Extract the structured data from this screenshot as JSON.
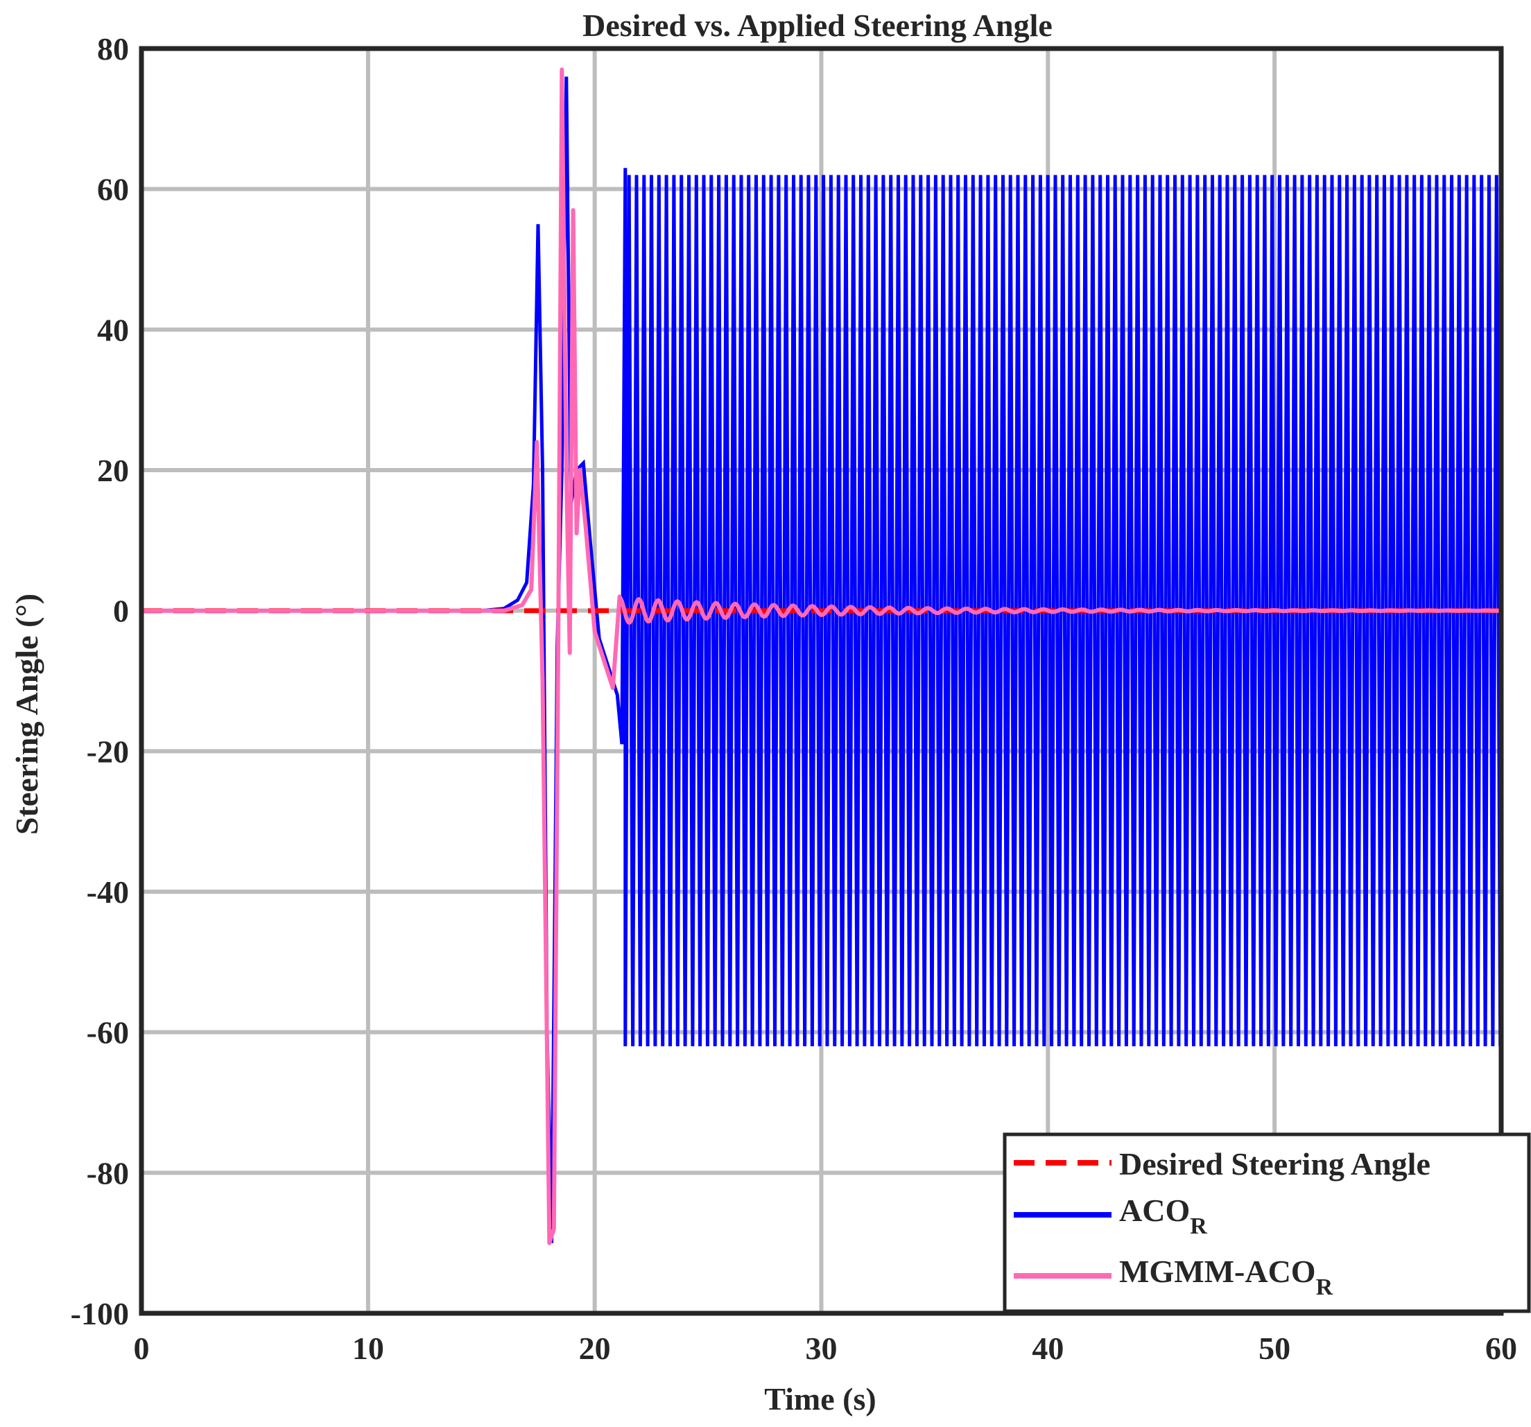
{
  "chart_data": {
    "type": "line",
    "title": "Desired vs. Applied Steering Angle",
    "xlabel": "Time (s)",
    "ylabel": "Steering Angle (°)",
    "xlim": [
      0,
      60
    ],
    "ylim": [
      -100,
      80
    ],
    "xticks": [
      0,
      10,
      20,
      30,
      40,
      50,
      60
    ],
    "yticks": [
      -100,
      -80,
      -60,
      -40,
      -20,
      0,
      20,
      40,
      60,
      80
    ],
    "grid": true,
    "legend_position": "bottom-right",
    "series": [
      {
        "name": "Desired Steering Angle",
        "color": "#ff0000",
        "style": "dashed",
        "x": [
          0,
          60
        ],
        "y": [
          0,
          0
        ]
      },
      {
        "name": "ACO",
        "name_subscript": "R",
        "color": "#0000ff",
        "style": "solid",
        "x": [
          0,
          15.0,
          16.0,
          16.6,
          17.0,
          17.3,
          17.5,
          17.7,
          17.9,
          18.1,
          18.35,
          18.55,
          18.75,
          18.95,
          19.2,
          19.5,
          19.8,
          20.2,
          20.6,
          21.0,
          21.2,
          21.35
        ],
        "y": [
          0,
          0,
          0.3,
          1.5,
          4,
          18,
          55,
          20,
          -60,
          -90,
          -5,
          20,
          76,
          15,
          20,
          21,
          10,
          -4,
          -8,
          -12,
          -19,
          63
        ],
        "oscillation": {
          "x_start": 21.35,
          "x_end": 60,
          "period": 0.33,
          "amplitude_max": 62,
          "amplitude_min": -62
        }
      },
      {
        "name": "MGMM-ACO",
        "name_subscript": "R",
        "color": "#ff69b4",
        "style": "solid",
        "x": [
          0,
          16.0,
          16.8,
          17.2,
          17.45,
          17.7,
          18.0,
          18.2,
          18.4,
          18.55,
          18.75,
          18.9,
          19.05,
          19.2,
          19.35,
          19.6,
          20.0,
          20.4,
          20.8,
          21.1
        ],
        "y": [
          0,
          0,
          0.8,
          3,
          24,
          -10,
          -90,
          -88,
          0,
          77,
          20,
          -6,
          57,
          11,
          20,
          12,
          -3,
          -7,
          -11,
          2
        ],
        "damped": {
          "x_start": 21.1,
          "x_end": 60,
          "period": 0.85,
          "amplitude_start": 1.8,
          "decay_rate": 0.12
        }
      }
    ]
  }
}
